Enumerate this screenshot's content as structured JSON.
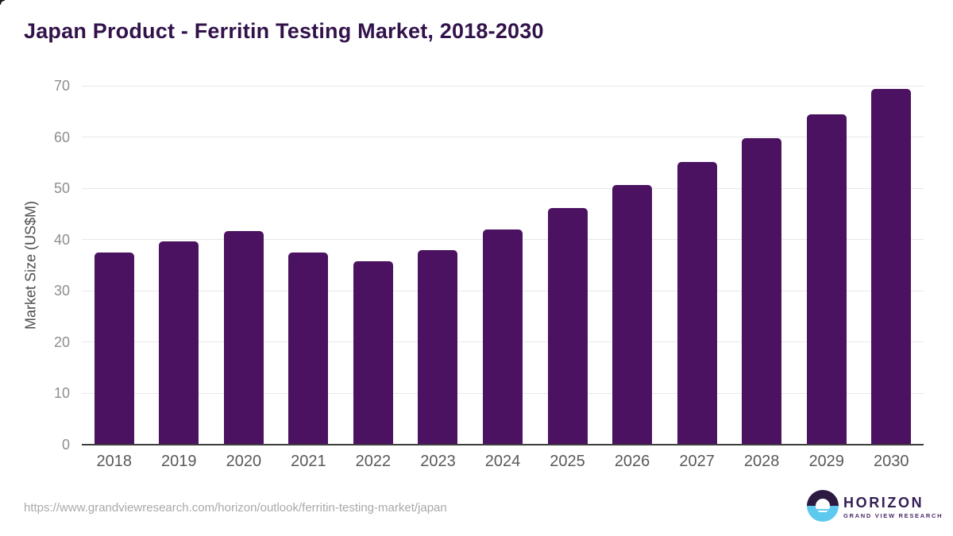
{
  "chart_data": {
    "type": "bar",
    "title": "Japan Product - Ferritin Testing Market, 2018-2030",
    "categories": [
      "2018",
      "2019",
      "2020",
      "2021",
      "2022",
      "2023",
      "2024",
      "2025",
      "2026",
      "2027",
      "2028",
      "2029",
      "2030"
    ],
    "values": [
      37.5,
      39.6,
      41.6,
      37.5,
      35.8,
      37.9,
      42.0,
      46.2,
      50.6,
      55.2,
      59.8,
      64.5,
      69.4
    ],
    "xlabel": "",
    "ylabel": "Market Size (US$M)",
    "ylim": [
      0,
      70
    ],
    "yticks": [
      0,
      10,
      20,
      30,
      40,
      50,
      60,
      70
    ],
    "grid": "horizontal-only",
    "legend": "none",
    "colors": {
      "bar": "#4a1260",
      "title": "#32124a",
      "axis_line": "#3d3d3d",
      "gridline": "#e8e8e8",
      "y_tick_label": "#8e8e8e",
      "x_tick_label": "#595959",
      "y_axis_title": "#4d4d4d"
    }
  },
  "footer": {
    "source_url": "https://www.grandviewresearch.com/horizon/outlook/ferritin-testing-market/japan",
    "logo": {
      "brand": "HORIZON",
      "subtitle": "GRAND VIEW RESEARCH",
      "circle_top_color": "#2c1a40",
      "circle_bottom_color": "#5ec9ef",
      "icon": "sunset-circle-icon"
    }
  }
}
